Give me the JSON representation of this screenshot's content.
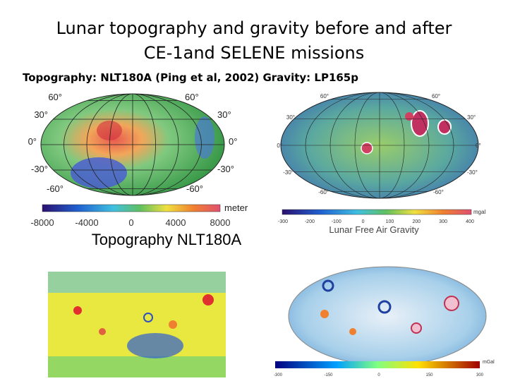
{
  "title": {
    "lines": [
      "Lunar topography and gravity before and after",
      "CE-1and SELENE    missions"
    ]
  },
  "subtitle": "Topography: NLT180A (Ping et al, 2002)   Gravity: LP165p",
  "topography_map": {
    "lat_labels": [
      "60°",
      "30°",
      "0°",
      "-30°",
      "-60°"
    ],
    "colorbar_ticks": [
      "-8000",
      "-4000",
      "0",
      "4000",
      "8000"
    ],
    "colorbar_unit": "meter",
    "caption": "Topography NLT180A"
  },
  "gravity_map": {
    "lat_labels": [
      "60°",
      "30°",
      "0°",
      "-30°",
      "-60°"
    ],
    "colorbar_ticks": [
      "-300",
      "-200",
      "-100",
      "0",
      "100",
      "200",
      "300",
      "400"
    ],
    "colorbar_unit": "mgal",
    "caption": "Lunar Free Air Gravity"
  },
  "gravity_map_2": {
    "colorbar_ticks": [
      "-300",
      "-150",
      "0",
      "150",
      "300"
    ],
    "colorbar_unit": "mGal"
  }
}
